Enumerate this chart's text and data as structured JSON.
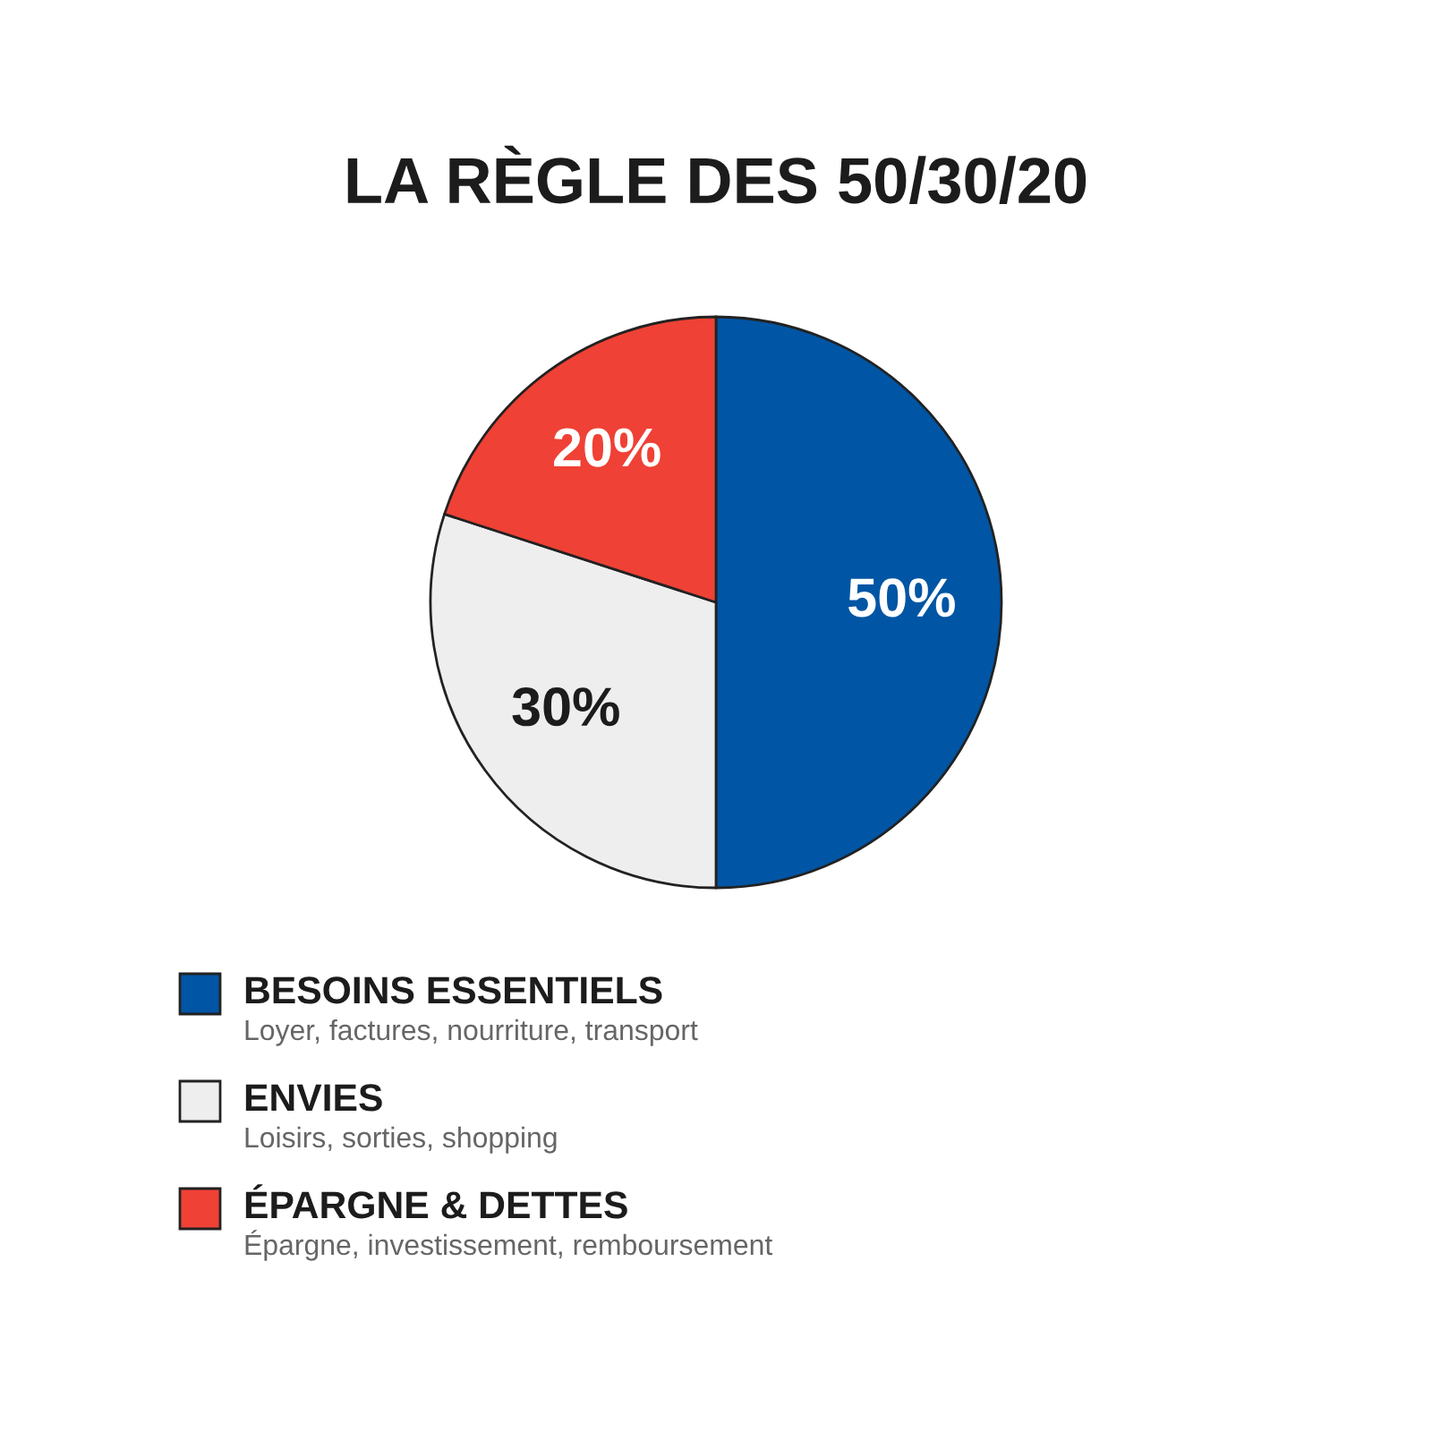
{
  "chart_data": {
    "type": "pie",
    "title": "LA RÈGLE DES 50/30/20",
    "categories": [
      "BESOINS ESSENTIELS",
      "ENVIES",
      "ÉPARGNE & DETTES"
    ],
    "values": [
      50,
      30,
      20
    ],
    "colors": [
      "#0055a4",
      "#eeeeee",
      "#ef4135"
    ],
    "value_labels": [
      "50%",
      "30%",
      "20%"
    ],
    "legend": "bottom left",
    "annotations": [
      "Loyer, factures, nourriture, transport",
      "Loisirs, sorties, shopping",
      "Épargne, investissement, remboursement"
    ]
  }
}
